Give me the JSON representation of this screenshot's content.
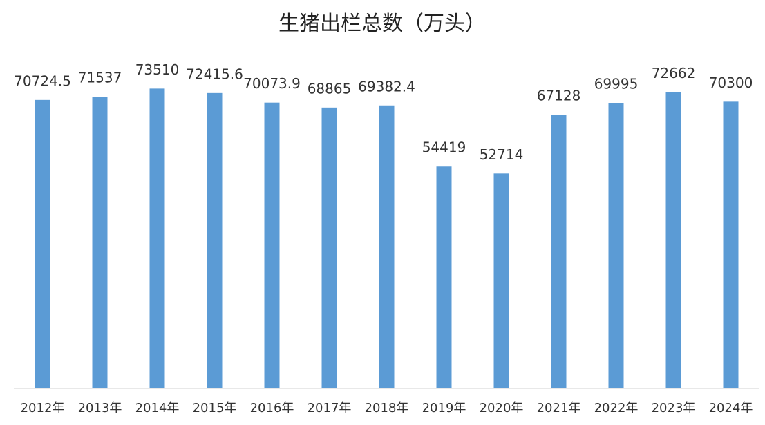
{
  "chart_data": {
    "type": "bar",
    "title": "生猪出栏总数（万头）",
    "categories": [
      "2012年",
      "2013年",
      "2014年",
      "2015年",
      "2016年",
      "2017年",
      "2018年",
      "2019年",
      "2020年",
      "2021年",
      "2022年",
      "2023年",
      "2024年"
    ],
    "values": [
      70724.5,
      71537,
      73510,
      72415.6,
      70073.9,
      68865,
      69382.4,
      54419,
      52714,
      67128,
      69995,
      72662,
      70300
    ],
    "color": "#5b9bd5",
    "ylim": [
      0,
      80000
    ]
  }
}
